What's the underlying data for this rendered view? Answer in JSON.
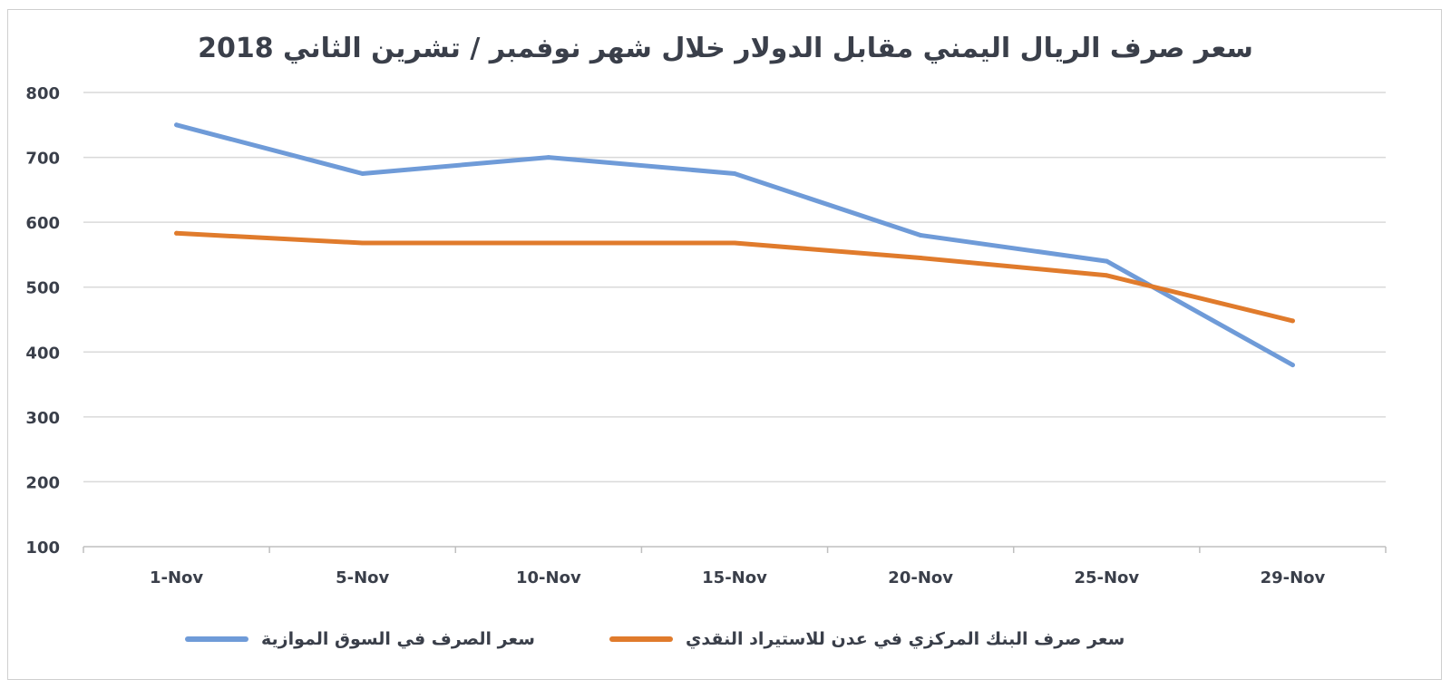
{
  "chart_data": {
    "type": "line",
    "title": "سعر صرف الريال اليمني مقابل الدولار خلال شهر نوفمبر / تشرين الثاني 2018",
    "categories": [
      "1-Nov",
      "5-Nov",
      "10-Nov",
      "15-Nov",
      "20-Nov",
      "25-Nov",
      "29-Nov"
    ],
    "ylim": [
      100,
      800
    ],
    "yticks": [
      100,
      200,
      300,
      400,
      500,
      600,
      700,
      800
    ],
    "grid": true,
    "legend_position": "bottom",
    "series": [
      {
        "name": "سعر الصرف في السوق الموازية",
        "color": "#6f9bd8",
        "values": [
          750,
          675,
          700,
          675,
          580,
          540,
          380
        ]
      },
      {
        "name": "سعر صرف البنك المركزي في عدن للاستيراد النقدي",
        "color": "#e07b2c",
        "values": [
          583,
          568,
          568,
          568,
          545,
          518,
          448
        ]
      }
    ]
  }
}
